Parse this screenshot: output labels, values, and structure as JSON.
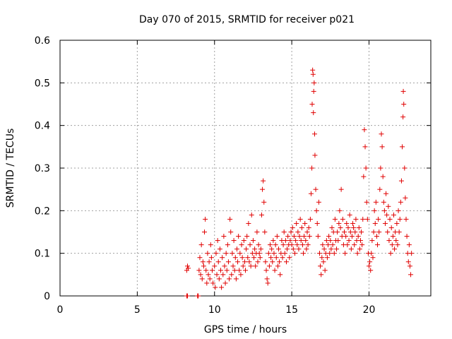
{
  "chart_data": {
    "type": "scatter",
    "title": "Day 070 of 2015, SRMTID for receiver p021",
    "xlabel": "GPS time / hours",
    "ylabel": "SRMTID / TECUs",
    "xlim": [
      0,
      24
    ],
    "ylim": [
      0,
      0.6
    ],
    "xticks": [
      0,
      5,
      10,
      15,
      20
    ],
    "yticks": [
      0,
      0.1,
      0.2,
      0.3,
      0.4,
      0.5,
      0.6
    ],
    "xtick_labels": [
      "0",
      "5",
      "10",
      "15",
      "20"
    ],
    "ytick_labels": [
      "0",
      "0.1",
      "0.2",
      "0.3",
      "0.4",
      "0.5",
      "0.6"
    ],
    "grid": true,
    "marker": "+",
    "color": "#e00000",
    "series": [
      {
        "name": "SRMTID",
        "points": [
          [
            8.2,
            0.0
          ],
          [
            8.25,
            0.0
          ],
          [
            8.9,
            0.0
          ],
          [
            8.95,
            0.0
          ],
          [
            8.2,
            0.06
          ],
          [
            8.25,
            0.07
          ],
          [
            8.3,
            0.065
          ],
          [
            9.0,
            0.06
          ],
          [
            9.05,
            0.09
          ],
          [
            9.1,
            0.05
          ],
          [
            9.15,
            0.12
          ],
          [
            9.2,
            0.04
          ],
          [
            9.25,
            0.08
          ],
          [
            9.3,
            0.07
          ],
          [
            9.35,
            0.15
          ],
          [
            9.4,
            0.18
          ],
          [
            9.45,
            0.06
          ],
          [
            9.5,
            0.03
          ],
          [
            9.55,
            0.1
          ],
          [
            9.6,
            0.05
          ],
          [
            9.65,
            0.08
          ],
          [
            9.7,
            0.04
          ],
          [
            9.75,
            0.12
          ],
          [
            9.8,
            0.09
          ],
          [
            9.85,
            0.06
          ],
          [
            9.9,
            0.03
          ],
          [
            10.0,
            0.07
          ],
          [
            10.05,
            0.02
          ],
          [
            10.1,
            0.1
          ],
          [
            10.15,
            0.05
          ],
          [
            10.2,
            0.13
          ],
          [
            10.25,
            0.08
          ],
          [
            10.3,
            0.04
          ],
          [
            10.35,
            0.11
          ],
          [
            10.4,
            0.06
          ],
          [
            10.45,
            0.02
          ],
          [
            10.5,
            0.09
          ],
          [
            10.55,
            0.05
          ],
          [
            10.6,
            0.14
          ],
          [
            10.65,
            0.07
          ],
          [
            10.7,
            0.03
          ],
          [
            10.75,
            0.1
          ],
          [
            10.8,
            0.06
          ],
          [
            10.85,
            0.12
          ],
          [
            10.9,
            0.08
          ],
          [
            10.95,
            0.04
          ],
          [
            11.0,
            0.18
          ],
          [
            11.05,
            0.15
          ],
          [
            11.1,
            0.05
          ],
          [
            11.15,
            0.1
          ],
          [
            11.2,
            0.07
          ],
          [
            11.25,
            0.13
          ],
          [
            11.3,
            0.06
          ],
          [
            11.35,
            0.09
          ],
          [
            11.4,
            0.04
          ],
          [
            11.45,
            0.11
          ],
          [
            11.5,
            0.08
          ],
          [
            11.55,
            0.14
          ],
          [
            11.6,
            0.06
          ],
          [
            11.65,
            0.1
          ],
          [
            11.7,
            0.05
          ],
          [
            11.75,
            0.12
          ],
          [
            11.8,
            0.09
          ],
          [
            11.85,
            0.07
          ],
          [
            11.9,
            0.13
          ],
          [
            11.95,
            0.08
          ],
          [
            12.0,
            0.06
          ],
          [
            12.05,
            0.11
          ],
          [
            12.1,
            0.14
          ],
          [
            12.15,
            0.09
          ],
          [
            12.2,
            0.17
          ],
          [
            12.25,
            0.08
          ],
          [
            12.3,
            0.12
          ],
          [
            12.35,
            0.07
          ],
          [
            12.4,
            0.19
          ],
          [
            12.45,
            0.1
          ],
          [
            12.5,
            0.13
          ],
          [
            12.55,
            0.09
          ],
          [
            12.6,
            0.11
          ],
          [
            12.65,
            0.07
          ],
          [
            12.7,
            0.1
          ],
          [
            12.75,
            0.15
          ],
          [
            12.8,
            0.08
          ],
          [
            12.85,
            0.12
          ],
          [
            12.9,
            0.1
          ],
          [
            12.95,
            0.09
          ],
          [
            13.0,
            0.11
          ],
          [
            13.05,
            0.19
          ],
          [
            13.1,
            0.25
          ],
          [
            13.15,
            0.27
          ],
          [
            13.2,
            0.22
          ],
          [
            13.25,
            0.15
          ],
          [
            13.3,
            0.08
          ],
          [
            13.35,
            0.06
          ],
          [
            13.4,
            0.04
          ],
          [
            13.45,
            0.03
          ],
          [
            13.5,
            0.1
          ],
          [
            13.55,
            0.07
          ],
          [
            13.6,
            0.12
          ],
          [
            13.65,
            0.09
          ],
          [
            13.7,
            0.11
          ],
          [
            13.75,
            0.08
          ],
          [
            13.8,
            0.13
          ],
          [
            13.85,
            0.1
          ],
          [
            13.9,
            0.06
          ],
          [
            13.95,
            0.12
          ],
          [
            14.0,
            0.09
          ],
          [
            14.05,
            0.14
          ],
          [
            14.1,
            0.07
          ],
          [
            14.15,
            0.11
          ],
          [
            14.2,
            0.08
          ],
          [
            14.25,
            0.05
          ],
          [
            14.3,
            0.1
          ],
          [
            14.35,
            0.13
          ],
          [
            14.4,
            0.09
          ],
          [
            14.45,
            0.12
          ],
          [
            14.5,
            0.15
          ],
          [
            14.55,
            0.1
          ],
          [
            14.6,
            0.13
          ],
          [
            14.65,
            0.08
          ],
          [
            14.7,
            0.11
          ],
          [
            14.75,
            0.14
          ],
          [
            14.8,
            0.12
          ],
          [
            14.85,
            0.09
          ],
          [
            14.9,
            0.13
          ],
          [
            14.95,
            0.15
          ],
          [
            15.0,
            0.12
          ],
          [
            15.05,
            0.16
          ],
          [
            15.1,
            0.11
          ],
          [
            15.15,
            0.14
          ],
          [
            15.2,
            0.1
          ],
          [
            15.25,
            0.13
          ],
          [
            15.3,
            0.17
          ],
          [
            15.35,
            0.12
          ],
          [
            15.4,
            0.15
          ],
          [
            15.45,
            0.11
          ],
          [
            15.5,
            0.14
          ],
          [
            15.55,
            0.18
          ],
          [
            15.6,
            0.13
          ],
          [
            15.65,
            0.16
          ],
          [
            15.7,
            0.12
          ],
          [
            15.75,
            0.1
          ],
          [
            15.8,
            0.14
          ],
          [
            15.85,
            0.17
          ],
          [
            15.9,
            0.13
          ],
          [
            15.95,
            0.11
          ],
          [
            16.0,
            0.15
          ],
          [
            16.05,
            0.12
          ],
          [
            16.1,
            0.16
          ],
          [
            16.15,
            0.14
          ],
          [
            16.2,
            0.18
          ],
          [
            16.25,
            0.24
          ],
          [
            16.3,
            0.3
          ],
          [
            16.32,
            0.45
          ],
          [
            16.35,
            0.53
          ],
          [
            16.38,
            0.52
          ],
          [
            16.4,
            0.43
          ],
          [
            16.42,
            0.48
          ],
          [
            16.45,
            0.5
          ],
          [
            16.48,
            0.38
          ],
          [
            16.5,
            0.33
          ],
          [
            16.55,
            0.25
          ],
          [
            16.6,
            0.2
          ],
          [
            16.65,
            0.17
          ],
          [
            16.7,
            0.14
          ],
          [
            16.75,
            0.22
          ],
          [
            16.8,
            0.1
          ],
          [
            16.85,
            0.07
          ],
          [
            16.9,
            0.05
          ],
          [
            16.95,
            0.09
          ],
          [
            17.0,
            0.12
          ],
          [
            17.05,
            0.08
          ],
          [
            17.1,
            0.11
          ],
          [
            17.15,
            0.06
          ],
          [
            17.2,
            0.1
          ],
          [
            17.25,
            0.13
          ],
          [
            17.3,
            0.09
          ],
          [
            17.35,
            0.12
          ],
          [
            17.4,
            0.14
          ],
          [
            17.45,
            0.1
          ],
          [
            17.5,
            0.13
          ],
          [
            17.55,
            0.11
          ],
          [
            17.6,
            0.16
          ],
          [
            17.65,
            0.12
          ],
          [
            17.7,
            0.15
          ],
          [
            17.75,
            0.1
          ],
          [
            17.8,
            0.18
          ],
          [
            17.85,
            0.13
          ],
          [
            17.9,
            0.11
          ],
          [
            17.95,
            0.15
          ],
          [
            18.0,
            0.13
          ],
          [
            18.05,
            0.17
          ],
          [
            18.1,
            0.2
          ],
          [
            18.15,
            0.16
          ],
          [
            18.2,
            0.25
          ],
          [
            18.25,
            0.14
          ],
          [
            18.3,
            0.18
          ],
          [
            18.35,
            0.12
          ],
          [
            18.4,
            0.15
          ],
          [
            18.45,
            0.1
          ],
          [
            18.5,
            0.14
          ],
          [
            18.55,
            0.17
          ],
          [
            18.6,
            0.12
          ],
          [
            18.65,
            0.16
          ],
          [
            18.7,
            0.13
          ],
          [
            18.75,
            0.19
          ],
          [
            18.8,
            0.15
          ],
          [
            18.85,
            0.11
          ],
          [
            18.9,
            0.14
          ],
          [
            18.95,
            0.17
          ],
          [
            19.0,
            0.16
          ],
          [
            19.05,
            0.12
          ],
          [
            19.1,
            0.15
          ],
          [
            19.15,
            0.18
          ],
          [
            19.2,
            0.13
          ],
          [
            19.25,
            0.1
          ],
          [
            19.3,
            0.14
          ],
          [
            19.35,
            0.16
          ],
          [
            19.4,
            0.11
          ],
          [
            19.45,
            0.13
          ],
          [
            19.5,
            0.15
          ],
          [
            19.55,
            0.12
          ],
          [
            19.6,
            0.18
          ],
          [
            19.65,
            0.28
          ],
          [
            19.7,
            0.39
          ],
          [
            19.75,
            0.35
          ],
          [
            19.8,
            0.3
          ],
          [
            19.85,
            0.22
          ],
          [
            19.9,
            0.18
          ],
          [
            19.95,
            0.1
          ],
          [
            20.0,
            0.07
          ],
          [
            20.05,
            0.08
          ],
          [
            20.1,
            0.06
          ],
          [
            20.15,
            0.1
          ],
          [
            20.2,
            0.13
          ],
          [
            20.25,
            0.09
          ],
          [
            20.3,
            0.15
          ],
          [
            20.35,
            0.2
          ],
          [
            20.4,
            0.17
          ],
          [
            20.45,
            0.22
          ],
          [
            20.5,
            0.14
          ],
          [
            20.55,
            0.12
          ],
          [
            20.6,
            0.18
          ],
          [
            20.65,
            0.15
          ],
          [
            20.7,
            0.25
          ],
          [
            20.75,
            0.3
          ],
          [
            20.8,
            0.38
          ],
          [
            20.85,
            0.35
          ],
          [
            20.9,
            0.28
          ],
          [
            20.95,
            0.22
          ],
          [
            21.0,
            0.2
          ],
          [
            21.05,
            0.17
          ],
          [
            21.1,
            0.24
          ],
          [
            21.15,
            0.19
          ],
          [
            21.2,
            0.15
          ],
          [
            21.25,
            0.21
          ],
          [
            21.3,
            0.13
          ],
          [
            21.35,
            0.18
          ],
          [
            21.4,
            0.1
          ],
          [
            21.45,
            0.16
          ],
          [
            21.5,
            0.12
          ],
          [
            21.55,
            0.14
          ],
          [
            21.6,
            0.19
          ],
          [
            21.65,
            0.11
          ],
          [
            21.7,
            0.15
          ],
          [
            21.75,
            0.13
          ],
          [
            21.8,
            0.17
          ],
          [
            21.85,
            0.12
          ],
          [
            21.9,
            0.2
          ],
          [
            21.95,
            0.15
          ],
          [
            22.0,
            0.18
          ],
          [
            22.05,
            0.22
          ],
          [
            22.1,
            0.27
          ],
          [
            22.15,
            0.35
          ],
          [
            22.2,
            0.42
          ],
          [
            22.22,
            0.48
          ],
          [
            22.25,
            0.45
          ],
          [
            22.3,
            0.3
          ],
          [
            22.35,
            0.23
          ],
          [
            22.4,
            0.18
          ],
          [
            22.45,
            0.14
          ],
          [
            22.5,
            0.1
          ],
          [
            22.55,
            0.08
          ],
          [
            22.6,
            0.12
          ],
          [
            22.65,
            0.07
          ],
          [
            22.7,
            0.05
          ],
          [
            22.75,
            0.1
          ]
        ]
      }
    ]
  }
}
